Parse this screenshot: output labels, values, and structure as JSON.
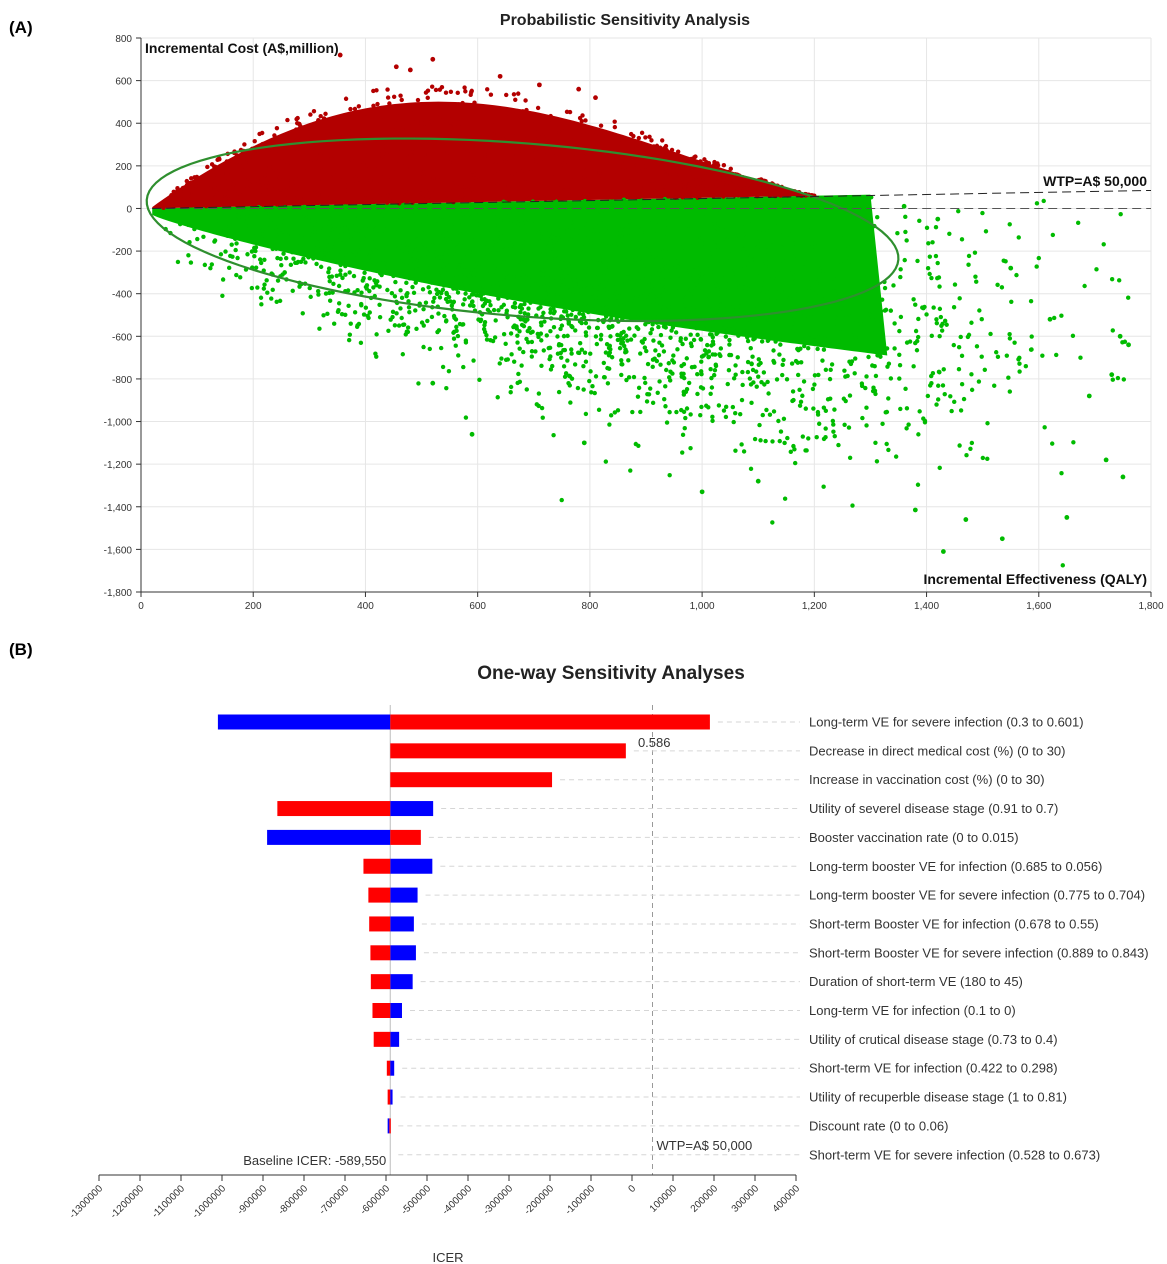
{
  "panel_labels": {
    "a": "(A)",
    "b": "(B)"
  },
  "chart_data": [
    {
      "type": "scatter",
      "title": "Probabilistic Sensitivity Analysis",
      "xlabel": "Incremental Effectiveness (QALY)",
      "ylabel": "Incremental Cost (A$,million)",
      "xlim": [
        0,
        1800
      ],
      "ylim": [
        -1800,
        800
      ],
      "x_ticks": [
        "0",
        "200",
        "400",
        "600",
        "800",
        "1,000",
        "1,200",
        "1,400",
        "1,600",
        "1,800"
      ],
      "y_ticks": [
        "800",
        "600",
        "400",
        "200",
        "0",
        "-200",
        "-400",
        "-600",
        "-800",
        "-1,000",
        "-1,200",
        "-1,400",
        "-1,600",
        "-1,800"
      ],
      "grid": true,
      "wtp_label": "WTP=A$ 50,000",
      "series_colors": {
        "above_wtp": "#b30000",
        "below_wtp": "#00bb00",
        "ellipse": "#2f8f2f"
      },
      "ellipse": {
        "center": [
          680,
          -100
        ],
        "semi_axes": [
          690,
          395
        ],
        "rotation_deg": -17
      },
      "sample_points": [
        {
          "x": 355,
          "y": 720
        },
        {
          "x": 520,
          "y": 700
        },
        {
          "x": 455,
          "y": 665
        },
        {
          "x": 480,
          "y": 650
        },
        {
          "x": 640,
          "y": 620
        },
        {
          "x": 710,
          "y": 580
        },
        {
          "x": 780,
          "y": 560
        },
        {
          "x": 810,
          "y": 520
        },
        {
          "x": 1360,
          "y": 10
        },
        {
          "x": 1420,
          "y": -50
        },
        {
          "x": 1430,
          "y": -1610
        },
        {
          "x": 1535,
          "y": -1550
        },
        {
          "x": 1650,
          "y": -1450
        },
        {
          "x": 1730,
          "y": -780
        },
        {
          "x": 1760,
          "y": -640
        },
        {
          "x": 1745,
          "y": -600
        },
        {
          "x": 1720,
          "y": -1180
        },
        {
          "x": 1750,
          "y": -1260
        },
        {
          "x": 1690,
          "y": -880
        },
        {
          "x": 1550,
          "y": -280
        },
        {
          "x": 1620,
          "y": -520
        },
        {
          "x": 1380,
          "y": -1415
        },
        {
          "x": 1470,
          "y": -1460
        },
        {
          "x": 1000,
          "y": -1330
        },
        {
          "x": 1100,
          "y": -1280
        },
        {
          "x": 790,
          "y": -1100
        },
        {
          "x": 590,
          "y": -1060
        },
        {
          "x": 520,
          "y": -820
        }
      ]
    },
    {
      "type": "bar",
      "title": "One-way Sensitivity Analyses",
      "xlabel": "ICER",
      "xlim": [
        -1300000,
        400000
      ],
      "x_ticks": [
        -1300000,
        -1200000,
        -1100000,
        -1000000,
        -900000,
        -800000,
        -700000,
        -600000,
        -500000,
        -400000,
        -300000,
        -200000,
        -100000,
        0,
        100000,
        200000,
        300000,
        400000
      ],
      "baseline": -589550,
      "baseline_label": "Baseline ICER: -589,550",
      "wtp": 50000,
      "wtp_label": "WTP=A$ 50,000",
      "annotation": {
        "text": "0.586",
        "x": -5000
      },
      "series": [
        {
          "name": "Low",
          "color": "#ff0000"
        },
        {
          "name": "High",
          "color": "#0000ff"
        }
      ],
      "params": [
        {
          "label": "Long-term VE for severe infection (0.3 to 0.601)",
          "red": [
            -589550,
            190000
          ],
          "blue": [
            -1010000,
            -589550
          ],
          "order": "red"
        },
        {
          "label": "Decrease in direct medical cost (%) (0 to 30)",
          "red": [
            -589550,
            -15000
          ],
          "blue": null,
          "order": "red"
        },
        {
          "label": "Increase in vaccination cost (%) (0 to 30)",
          "red": [
            -589550,
            -195000
          ],
          "blue": null,
          "order": "red"
        },
        {
          "label": "Utility of severel disease stage (0.91 to 0.7)",
          "red": [
            -865000,
            -589550
          ],
          "blue": [
            -589550,
            -485000
          ],
          "order": "red"
        },
        {
          "label": "Booster vaccination rate (0 to 0.015)",
          "red": [
            -589550,
            -515000
          ],
          "blue": [
            -890000,
            -589550
          ],
          "order": "red"
        },
        {
          "label": "Long-term booster VE for infection (0.685 to 0.056)",
          "red": [
            -655000,
            -589550
          ],
          "blue": [
            -589550,
            -487000
          ],
          "order": "red"
        },
        {
          "label": "Long-term booster VE for severe infection (0.775 to 0.704)",
          "red": [
            -643000,
            -589550
          ],
          "blue": [
            -589550,
            -523000
          ],
          "order": "red"
        },
        {
          "label": "Short-term Booster VE for infection (0.678 to 0.55)",
          "red": [
            -641000,
            -589550
          ],
          "blue": [
            -589550,
            -532000
          ],
          "order": "red"
        },
        {
          "label": "Short-term Booster VE for severe infection (0.889 to 0.843)",
          "red": [
            -638000,
            -589550
          ],
          "blue": [
            -589550,
            -527000
          ],
          "order": "red"
        },
        {
          "label": "Duration of short-term VE (180 to 45)",
          "red": [
            -637000,
            -589550
          ],
          "blue": [
            -589550,
            -535000
          ],
          "order": "red"
        },
        {
          "label": "Long-term VE for infection (0.1 to 0)",
          "red": [
            -633000,
            -589550
          ],
          "blue": [
            -589550,
            -561000
          ],
          "order": "red"
        },
        {
          "label": "Utility of crutical disease stage (0.73 to 0.4)",
          "red": [
            -630000,
            -589550
          ],
          "blue": [
            -589550,
            -568000
          ],
          "order": "red"
        },
        {
          "label": "Short-term VE for infection (0.422 to 0.298)",
          "red": [
            -598000,
            -589550
          ],
          "blue": [
            -589550,
            -580000
          ],
          "order": "blue"
        },
        {
          "label": "Utility of recuperble disease stage (1 to 0.81)",
          "red": [
            -596000,
            -589550
          ],
          "blue": [
            -589550,
            -584000
          ],
          "order": "blue"
        },
        {
          "label": "Discount rate (0 to 0.06)",
          "red": [
            -592000,
            -589550
          ],
          "blue": [
            -596000,
            -592000
          ],
          "order": "blue"
        },
        {
          "label": "Short-term VE for severe infection (0.528 to 0.673)",
          "red": null,
          "blue": null,
          "order": "red"
        }
      ]
    }
  ]
}
